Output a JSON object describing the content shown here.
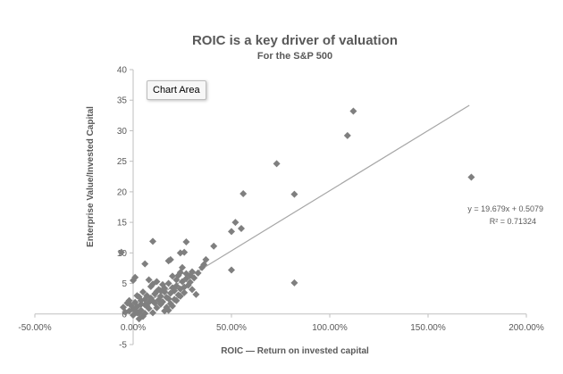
{
  "chart_data": {
    "type": "scatter",
    "title": "ROIC is a key driver of valuation",
    "subtitle": "For the S&P 500",
    "xlabel": "ROIC — Return on invested capital",
    "ylabel": "Enterprise Value/Invested Capital",
    "xlim": [
      -0.5,
      2.0
    ],
    "ylim": [
      -5,
      40
    ],
    "x_ticks": [
      -0.5,
      0,
      0.5,
      1.0,
      1.5,
      2.0
    ],
    "x_tick_labels": [
      "-50.00%",
      "0.00%",
      "50.00%",
      "100.00%",
      "150.00%",
      "200.00%"
    ],
    "y_ticks": [
      -5,
      0,
      5,
      10,
      15,
      20,
      25,
      30,
      35,
      40
    ],
    "y_tick_labels": [
      "-5",
      "0",
      "5",
      "10",
      "15",
      "20",
      "25",
      "30",
      "35",
      "40"
    ],
    "grid": false,
    "legend": "none",
    "marker": "diamond",
    "marker_color": "#7f7f7f",
    "trendline": {
      "type": "linear",
      "slope": 19.679,
      "intercept": 0.5079,
      "x_range": [
        -0.02,
        1.71
      ],
      "color": "#a6a6a6",
      "equation": "y = 19.679x + 0.5079",
      "r_squared": "R² = 0.71324"
    },
    "points": [
      [
        1.12,
        33.2
      ],
      [
        1.09,
        29.2
      ],
      [
        1.72,
        22.4
      ],
      [
        0.73,
        24.6
      ],
      [
        0.56,
        19.7
      ],
      [
        0.82,
        19.6
      ],
      [
        0.52,
        15.0
      ],
      [
        0.5,
        13.5
      ],
      [
        0.55,
        14.0
      ],
      [
        0.41,
        11.1
      ],
      [
        0.82,
        5.1
      ],
      [
        0.5,
        7.2
      ],
      [
        -0.06,
        10.1
      ],
      [
        0.1,
        11.9
      ],
      [
        0.27,
        11.8
      ],
      [
        0.24,
        10.0
      ],
      [
        0.26,
        10.1
      ],
      [
        0.37,
        8.9
      ],
      [
        0.35,
        7.6
      ],
      [
        0.36,
        8.1
      ],
      [
        0.33,
        6.7
      ],
      [
        0.18,
        8.7
      ],
      [
        0.19,
        8.9
      ],
      [
        0.25,
        7.6
      ],
      [
        0.06,
        8.2
      ],
      [
        0.23,
        6.3
      ],
      [
        0.27,
        6.6
      ],
      [
        0.29,
        6.3
      ],
      [
        0.3,
        6.9
      ],
      [
        0.31,
        5.9
      ],
      [
        0.29,
        5.2
      ],
      [
        0.28,
        4.7
      ],
      [
        0.25,
        5.3
      ],
      [
        0.24,
        4.1
      ],
      [
        0.22,
        4.6
      ],
      [
        0.21,
        3.8
      ],
      [
        0.2,
        4.3
      ],
      [
        0.19,
        3.4
      ],
      [
        0.18,
        5.0
      ],
      [
        0.17,
        2.7
      ],
      [
        0.16,
        3.6
      ],
      [
        0.15,
        4.8
      ],
      [
        0.14,
        2.9
      ],
      [
        0.13,
        4.0
      ],
      [
        0.12,
        5.3
      ],
      [
        0.11,
        3.3
      ],
      [
        0.1,
        2.1
      ],
      [
        0.09,
        4.5
      ],
      [
        0.08,
        1.9
      ],
      [
        0.07,
        3.0
      ],
      [
        0.06,
        2.4
      ],
      [
        0.05,
        3.6
      ],
      [
        0.04,
        1.6
      ],
      [
        0.03,
        2.8
      ],
      [
        0.02,
        1.2
      ],
      [
        0.01,
        1.9
      ],
      [
        0.0,
        0.8
      ],
      [
        -0.01,
        1.4
      ],
      [
        -0.02,
        0.5
      ],
      [
        -0.03,
        1.8
      ],
      [
        -0.04,
        0.3
      ],
      [
        -0.05,
        1.1
      ],
      [
        0.0,
        5.5
      ],
      [
        0.01,
        6.0
      ],
      [
        0.12,
        1.0
      ],
      [
        0.14,
        1.6
      ],
      [
        0.16,
        0.5
      ],
      [
        0.2,
        1.3
      ],
      [
        0.22,
        2.2
      ],
      [
        0.24,
        2.9
      ],
      [
        0.26,
        3.5
      ],
      [
        0.3,
        4.0
      ],
      [
        0.32,
        3.2
      ],
      [
        0.18,
        0.6
      ],
      [
        0.1,
        0.2
      ],
      [
        0.08,
        0.9
      ],
      [
        0.06,
        0.1
      ],
      [
        0.05,
        -0.4
      ],
      [
        0.03,
        -0.8
      ],
      [
        0.02,
        0.2
      ],
      [
        0.0,
        -0.2
      ],
      [
        0.04,
        0.6
      ],
      [
        0.07,
        1.3
      ],
      [
        0.09,
        2.6
      ],
      [
        0.11,
        1.8
      ],
      [
        0.13,
        2.3
      ],
      [
        0.15,
        2.0
      ],
      [
        0.17,
        1.1
      ],
      [
        0.19,
        1.7
      ],
      [
        0.21,
        2.4
      ],
      [
        0.23,
        3.1
      ],
      [
        0.16,
        4.2
      ],
      [
        0.14,
        3.8
      ],
      [
        0.12,
        3.7
      ],
      [
        0.1,
        4.9
      ],
      [
        0.08,
        5.6
      ],
      [
        0.2,
        6.2
      ],
      [
        0.18,
        2.5
      ],
      [
        0.26,
        4.4
      ],
      [
        0.27,
        5.8
      ],
      [
        0.22,
        5.6
      ],
      [
        0.24,
        6.8
      ],
      [
        0.06,
        1.5
      ],
      [
        0.04,
        2.2
      ],
      [
        0.02,
        3.0
      ],
      [
        -0.02,
        2.2
      ],
      [
        0.01,
        0.6
      ],
      [
        0.03,
        0.1
      ]
    ]
  },
  "overlay": {
    "tooltip_label": "Chart Area"
  }
}
